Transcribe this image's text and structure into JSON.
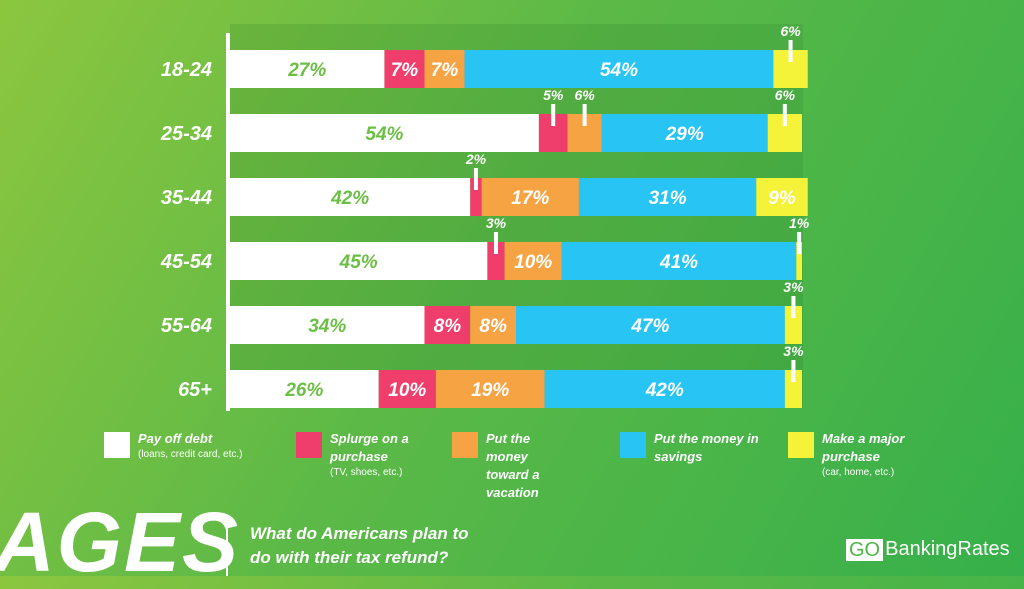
{
  "chart_data": {
    "type": "bar",
    "orientation": "horizontal",
    "stacked": true,
    "categories": [
      "18-24",
      "25-34",
      "35-44",
      "45-54",
      "55-64",
      "65+"
    ],
    "series": [
      {
        "name": "Pay off debt",
        "color": "#ffffff",
        "values": [
          27,
          54,
          42,
          45,
          34,
          26
        ]
      },
      {
        "name": "Splurge on a purchase",
        "color": "#ef3e6b",
        "values": [
          7,
          5,
          2,
          3,
          8,
          10
        ]
      },
      {
        "name": "Put the money toward a vacation",
        "color": "#f6a343",
        "values": [
          7,
          6,
          17,
          10,
          8,
          19
        ]
      },
      {
        "name": "Put the money in savings",
        "color": "#27c4f4",
        "values": [
          54,
          29,
          31,
          41,
          47,
          42
        ]
      },
      {
        "name": "Make a major purchase",
        "color": "#f5f23a",
        "values": [
          6,
          6,
          9,
          1,
          3,
          3
        ]
      }
    ],
    "value_suffix": "%",
    "legend_position": "bottom"
  },
  "legend": [
    {
      "title": "Pay off debt",
      "sub": "(loans, credit card, etc.)"
    },
    {
      "title": "Splurge on a purchase",
      "sub": "(TV, shoes, etc.)"
    },
    {
      "title": "Put the money toward a vacation",
      "sub": ""
    },
    {
      "title": "Put the money in savings",
      "sub": ""
    },
    {
      "title": "Make a major purchase",
      "sub": "(car, home, etc.)"
    }
  ],
  "footer": {
    "ages": "AGES",
    "question_line1": "What do Americans plan to",
    "question_line2": "do with their tax refund?",
    "logo_go": "GO",
    "logo_rest": "BankingRates"
  }
}
